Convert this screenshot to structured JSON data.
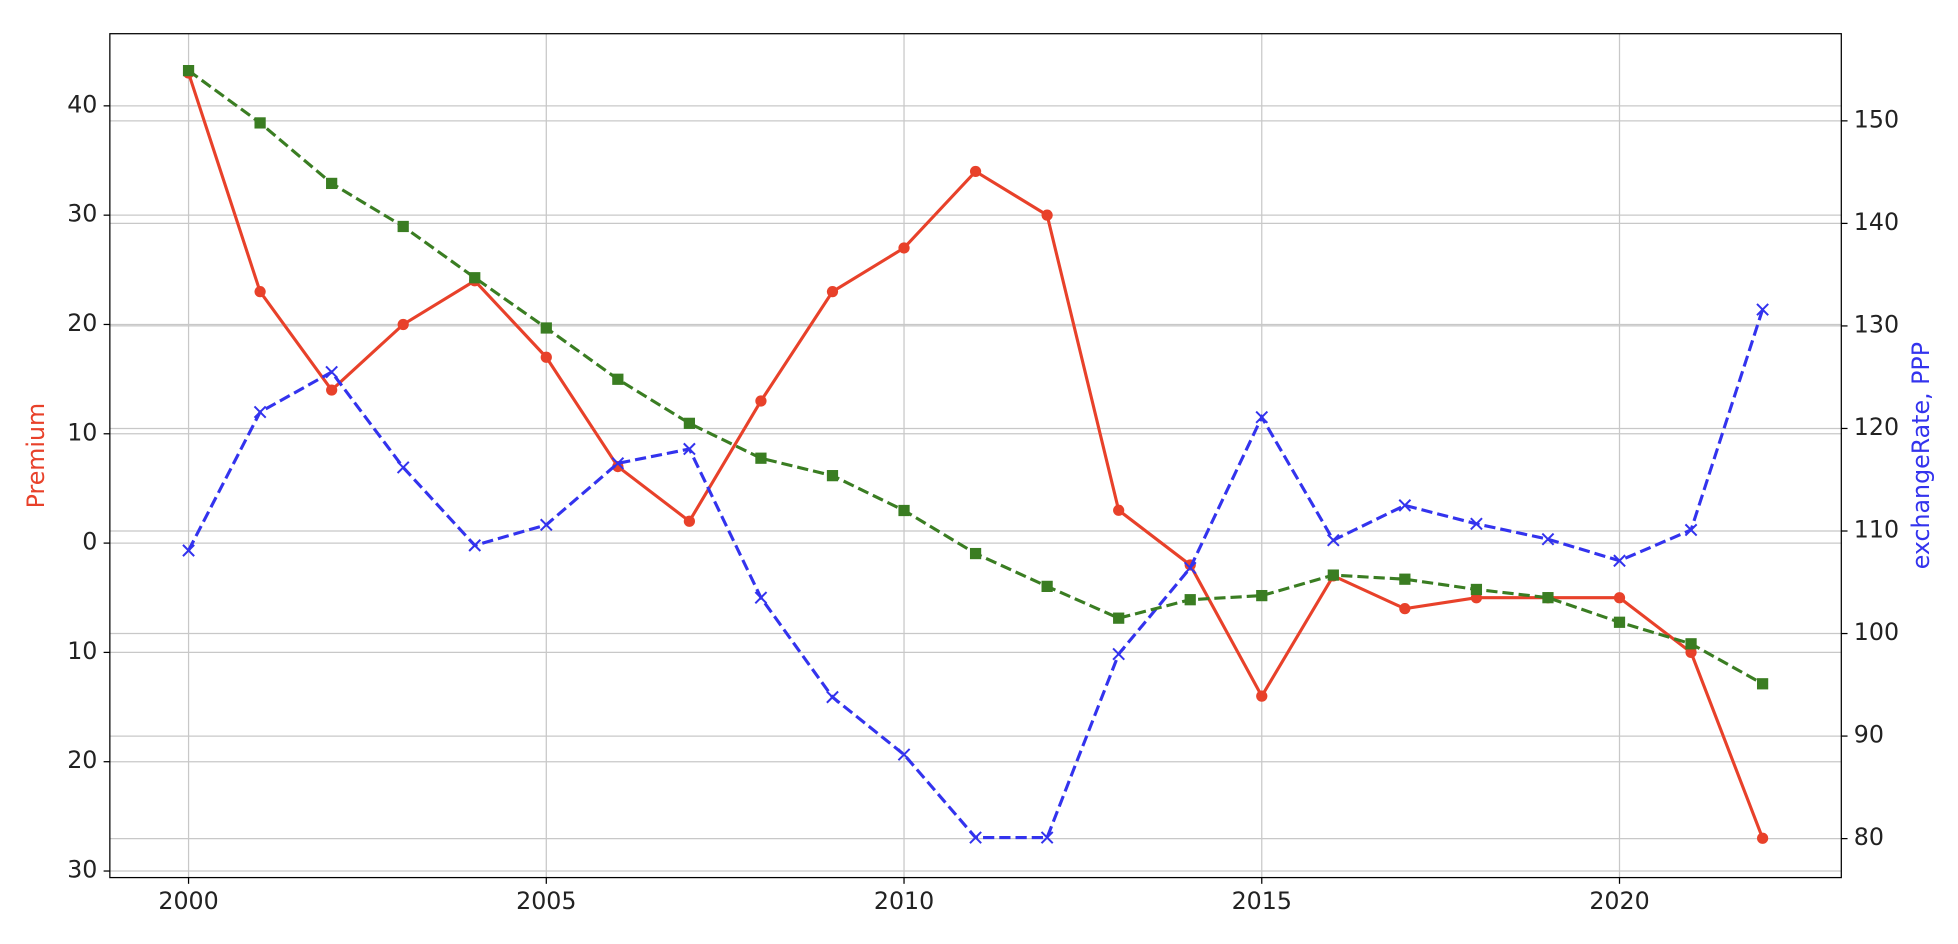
{
  "chart_data": {
    "type": "line",
    "ylabel": "Premium",
    "ylabel_color": "#e8412a",
    "y2label": "exchangeRate, PPP",
    "y2label_color": "#3333ee",
    "x": [
      2000,
      2001,
      2002,
      2003,
      2004,
      2005,
      2006,
      2007,
      2008,
      2009,
      2010,
      2011,
      2012,
      2013,
      2014,
      2015,
      2016,
      2017,
      2018,
      2019,
      2020,
      2021,
      2022
    ],
    "xlim": [
      1998.9,
      2023.1
    ],
    "xticks": [
      2000,
      2005,
      2010,
      2015,
      2020
    ],
    "ylim": [
      -30.6,
      46.6
    ],
    "yticks": [
      {
        "value": -30,
        "label": "30"
      },
      {
        "value": -20,
        "label": "20"
      },
      {
        "value": -10,
        "label": "10"
      },
      0,
      10,
      20,
      30,
      40
    ],
    "y2lim": [
      76.2,
      158.5
    ],
    "y2ticks": [
      80,
      90,
      100,
      110,
      120,
      130,
      140,
      150
    ],
    "grid": true,
    "series": [
      {
        "color": "#e8412a",
        "linestyle": "solid",
        "marker": "circle",
        "values": [
          43,
          23,
          14,
          20,
          24,
          17,
          7,
          2,
          13,
          23,
          27,
          34,
          30,
          3,
          -2,
          -14,
          -3,
          -6,
          -5,
          -5,
          -5,
          -10,
          -27
        ]
      },
      {
        "color": "#3333ee",
        "linestyle": "dashed",
        "marker": "x",
        "axis": "y2",
        "values": [
          108.1,
          121.6,
          125.5,
          116.2,
          108.6,
          110.6,
          116.6,
          118,
          103.5,
          93.8,
          88.2,
          80.1,
          80.1,
          98,
          106.4,
          121.1,
          109.1,
          112.5,
          110.7,
          109.2,
          107.1,
          110.1,
          131.6
        ]
      },
      {
        "color": "#3a7d22",
        "linestyle": "dashed",
        "marker": "square",
        "axis": "y2",
        "values": [
          154.9,
          149.8,
          143.9,
          139.7,
          134.7,
          129.8,
          124.8,
          120.5,
          117.1,
          115.4,
          112,
          107.8,
          104.6,
          101.5,
          103.3,
          103.7,
          105.7,
          105.3,
          104.3,
          103.5,
          101.1,
          99,
          95.1
        ]
      }
    ]
  }
}
